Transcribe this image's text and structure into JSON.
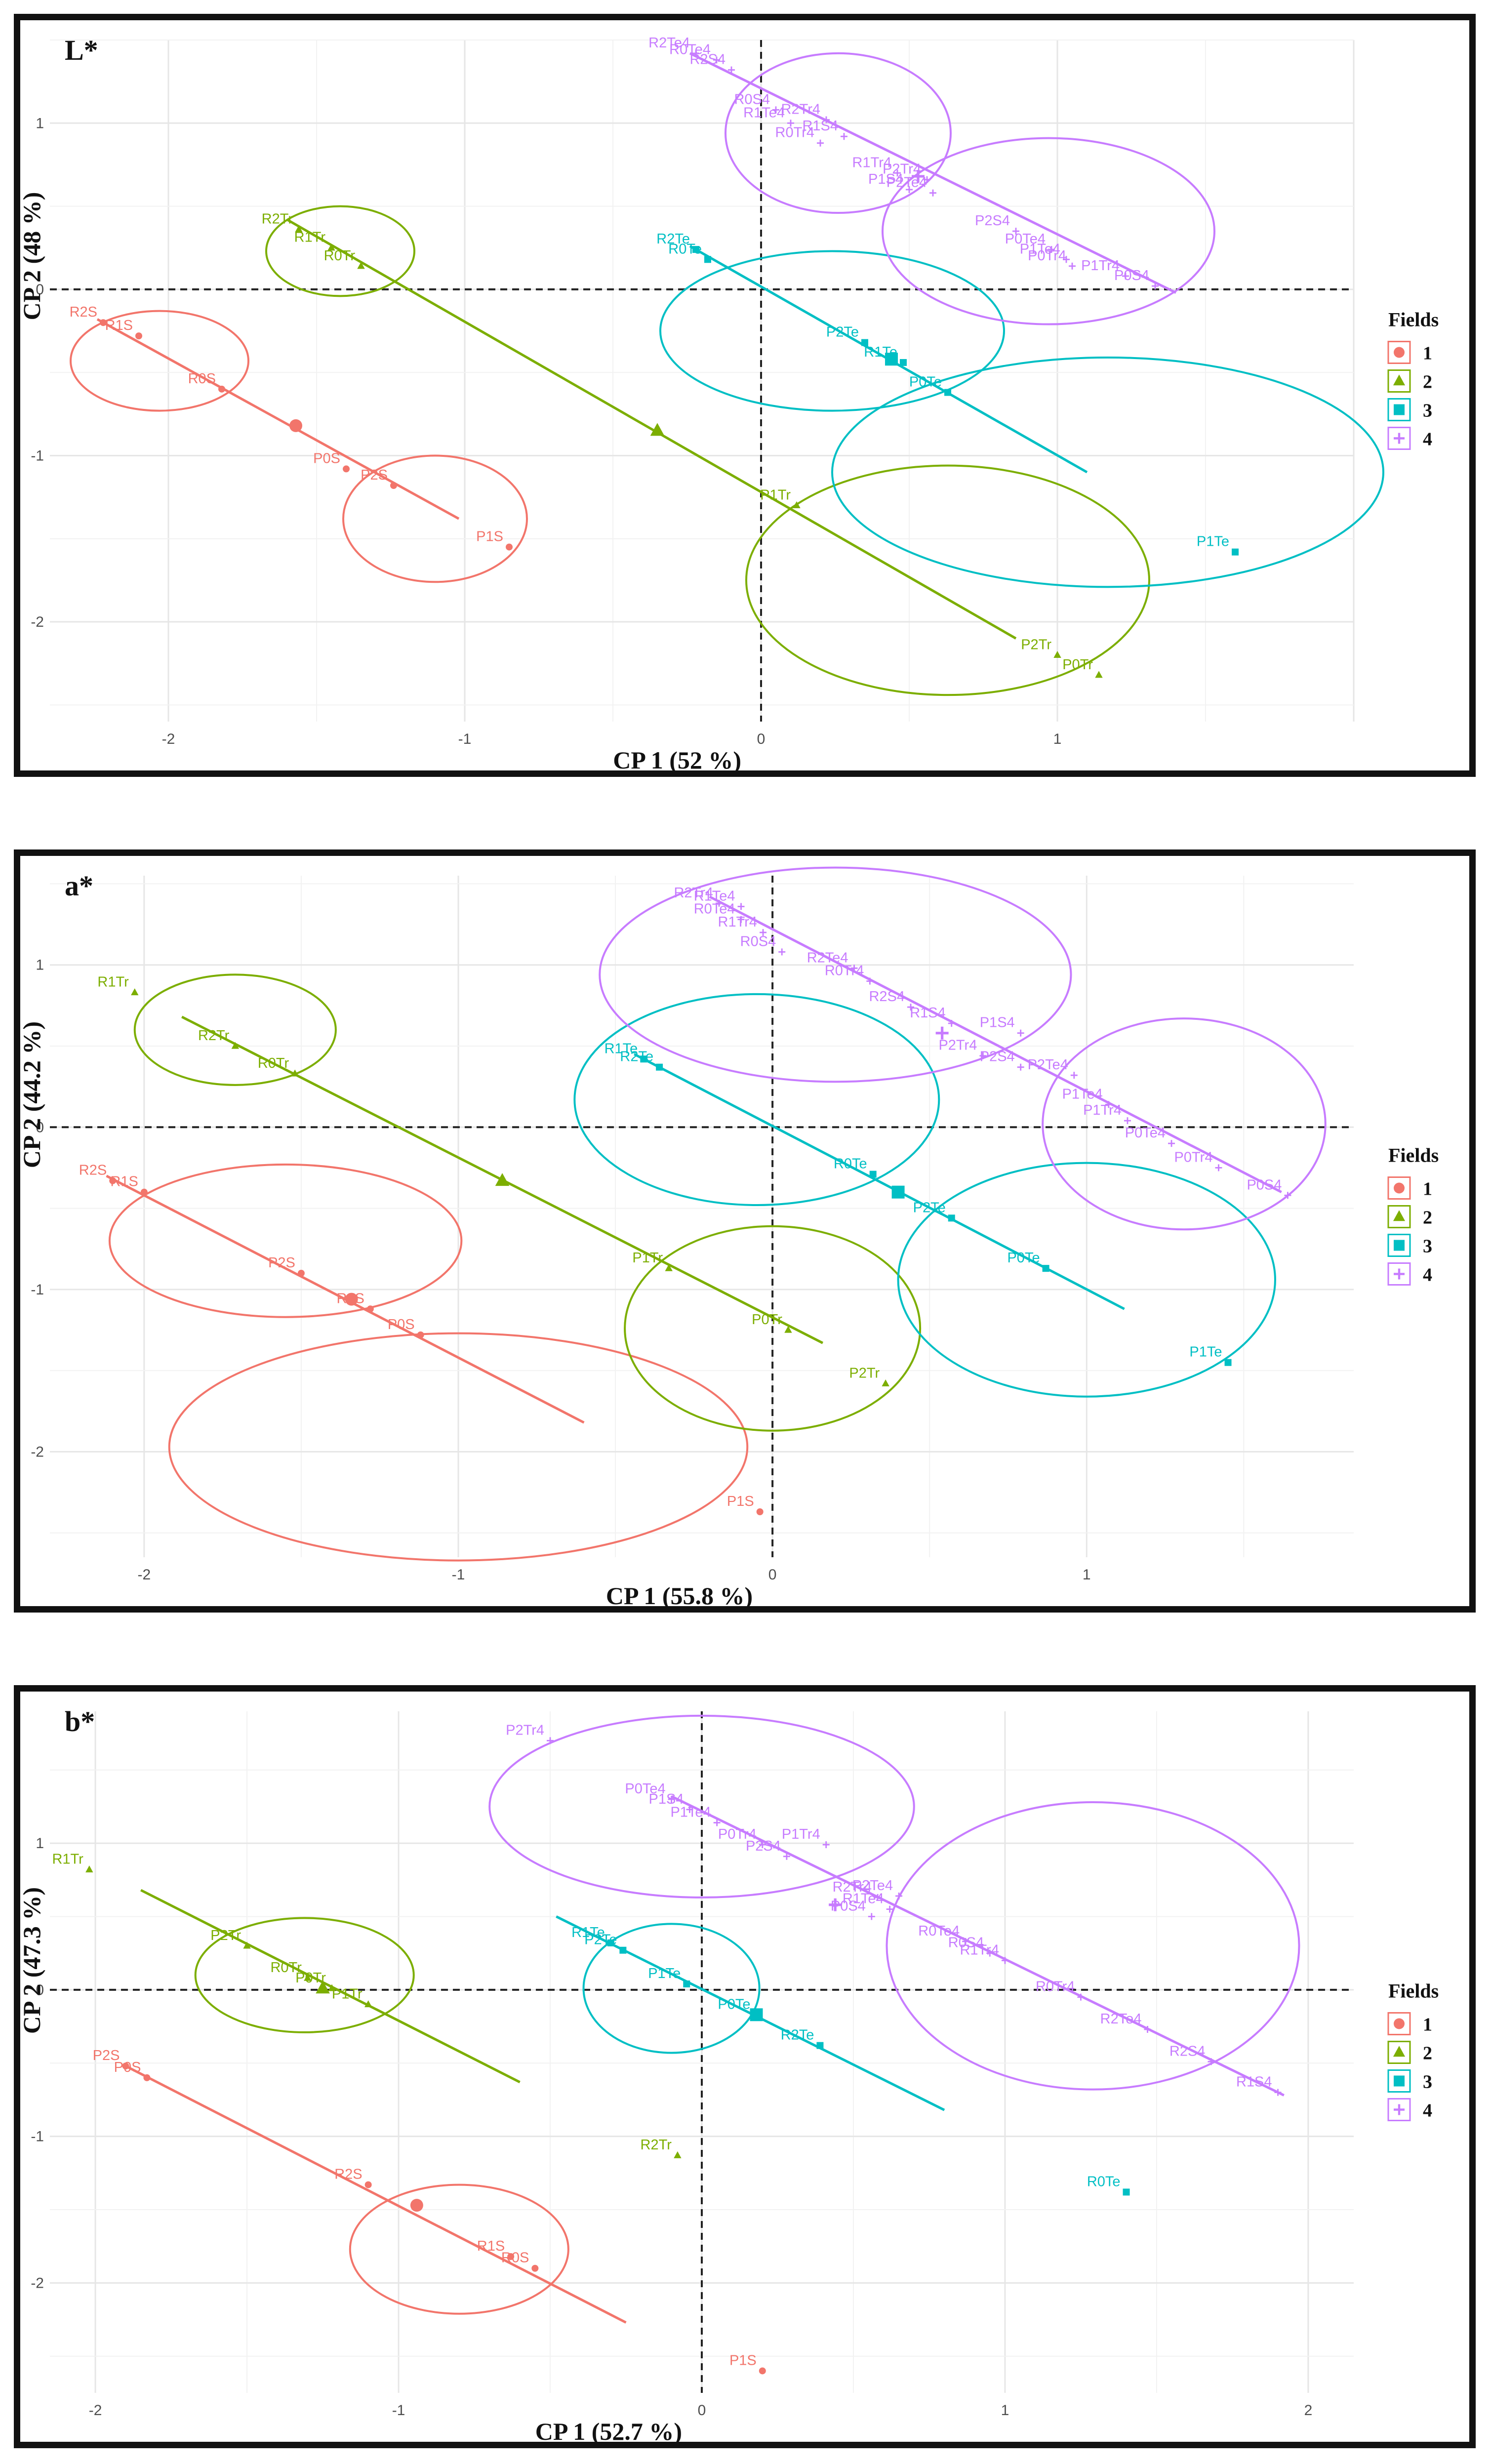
{
  "legend_title": "Fields",
  "groups": [
    {
      "id": "1",
      "color": "#F2756B"
    },
    {
      "id": "2",
      "color": "#7CAE00"
    },
    {
      "id": "3",
      "color": "#00BFC4"
    },
    {
      "id": "4",
      "color": "#C77CFF"
    }
  ],
  "chart_data": [
    {
      "type": "scatter",
      "title": "L*",
      "xlabel": "CP 1 (52 %)",
      "ylabel": "CP 2 (48 %)",
      "xlim": [
        -2.4,
        2.0
      ],
      "ylim": [
        -2.6,
        1.5
      ],
      "xticks": [
        -2,
        -1,
        0,
        1
      ],
      "yticks": [
        -2,
        -1,
        0,
        1
      ],
      "points": [
        {
          "label": "R2S",
          "g": "1",
          "x": -2.22,
          "y": -0.2
        },
        {
          "label": "R1S",
          "g": "1",
          "x": -2.1,
          "y": -0.28
        },
        {
          "label": "R0S",
          "g": "1",
          "x": -1.82,
          "y": -0.6
        },
        {
          "label": "P0S",
          "g": "1",
          "x": -1.4,
          "y": -1.08
        },
        {
          "label": "P2S",
          "g": "1",
          "x": -1.24,
          "y": -1.18
        },
        {
          "label": "P1S",
          "g": "1",
          "x": -0.85,
          "y": -1.55
        },
        {
          "label": "R2Tr",
          "g": "2",
          "x": -1.56,
          "y": 0.36
        },
        {
          "label": "R1Tr",
          "g": "2",
          "x": -1.45,
          "y": 0.25
        },
        {
          "label": "R0Tr",
          "g": "2",
          "x": -1.35,
          "y": 0.14
        },
        {
          "label": "P1Tr",
          "g": "2",
          "x": 0.12,
          "y": -1.3
        },
        {
          "label": "P2Tr",
          "g": "2",
          "x": 1.0,
          "y": -2.2
        },
        {
          "label": "P0Tr",
          "g": "2",
          "x": 1.14,
          "y": -2.32
        },
        {
          "label": "R2Te",
          "g": "3",
          "x": -0.22,
          "y": 0.24
        },
        {
          "label": "R0Te",
          "g": "3",
          "x": -0.18,
          "y": 0.18
        },
        {
          "label": "P2Te",
          "g": "3",
          "x": 0.35,
          "y": -0.32
        },
        {
          "label": "R1Te",
          "g": "3",
          "x": 0.48,
          "y": -0.44
        },
        {
          "label": "P0Te",
          "g": "3",
          "x": 0.63,
          "y": -0.62
        },
        {
          "label": "P1Te",
          "g": "3",
          "x": 1.6,
          "y": -1.58
        },
        {
          "label": "R2Te4",
          "g": "4",
          "x": -0.22,
          "y": 1.42
        },
        {
          "label": "R0Te4",
          "g": "4",
          "x": -0.15,
          "y": 1.38
        },
        {
          "label": "R2S4",
          "g": "4",
          "x": -0.1,
          "y": 1.32
        },
        {
          "label": "R0S4",
          "g": "4",
          "x": 0.05,
          "y": 1.08
        },
        {
          "label": "R2Tr4",
          "g": "4",
          "x": 0.22,
          "y": 1.02
        },
        {
          "label": "R1Te4",
          "g": "4",
          "x": 0.1,
          "y": 1.0
        },
        {
          "label": "R0Tr4",
          "g": "4",
          "x": 0.2,
          "y": 0.88
        },
        {
          "label": "R1S4",
          "g": "4",
          "x": 0.28,
          "y": 0.92
        },
        {
          "label": "R1Tr4",
          "g": "4",
          "x": 0.46,
          "y": 0.7
        },
        {
          "label": "P2Tr4",
          "g": "4",
          "x": 0.56,
          "y": 0.66
        },
        {
          "label": "P1S4",
          "g": "4",
          "x": 0.5,
          "y": 0.6
        },
        {
          "label": "P2Te4",
          "g": "4",
          "x": 0.58,
          "y": 0.58
        },
        {
          "label": "P2S4",
          "g": "4",
          "x": 0.86,
          "y": 0.35
        },
        {
          "label": "P0Te4",
          "g": "4",
          "x": 0.98,
          "y": 0.24
        },
        {
          "label": "P1Te4",
          "g": "4",
          "x": 1.03,
          "y": 0.18
        },
        {
          "label": "P0Tr4",
          "g": "4",
          "x": 1.05,
          "y": 0.14
        },
        {
          "label": "P1Tr4",
          "g": "4",
          "x": 1.23,
          "y": 0.08
        },
        {
          "label": "P0S4",
          "g": "4",
          "x": 1.33,
          "y": 0.02
        }
      ],
      "centroids": [
        {
          "g": "1",
          "x": -1.57,
          "y": -0.82
        },
        {
          "g": "2",
          "x": -0.35,
          "y": -0.85
        },
        {
          "g": "3",
          "x": 0.44,
          "y": -0.42
        },
        {
          "g": "4",
          "x": 0.53,
          "y": 0.68
        }
      ],
      "segments": [
        {
          "g": "1",
          "from": [
            -2.24,
            -0.18
          ],
          "to": [
            -1.02,
            -1.38
          ]
        },
        {
          "g": "2",
          "from": [
            -1.6,
            0.42
          ],
          "to": [
            0.86,
            -2.1
          ]
        },
        {
          "g": "3",
          "from": [
            -0.24,
            0.26
          ],
          "to": [
            1.1,
            -1.1
          ]
        },
        {
          "g": "4",
          "from": [
            -0.24,
            1.42
          ],
          "to": [
            1.4,
            -0.02
          ]
        }
      ],
      "ellipses": [
        {
          "g": "1",
          "cx": -2.03,
          "cy": -0.43,
          "rx": 0.3,
          "ry": 0.3
        },
        {
          "g": "1",
          "cx": -1.1,
          "cy": -1.38,
          "rx": 0.31,
          "ry": 0.38
        },
        {
          "g": "2",
          "cx": -1.42,
          "cy": 0.23,
          "rx": 0.25,
          "ry": 0.27
        },
        {
          "g": "2",
          "cx": 0.63,
          "cy": -1.75,
          "rx": 0.68,
          "ry": 0.69
        },
        {
          "g": "3",
          "cx": 0.24,
          "cy": -0.25,
          "rx": 0.58,
          "ry": 0.48
        },
        {
          "g": "3",
          "cx": 1.17,
          "cy": -1.1,
          "rx": 0.93,
          "ry": 0.69
        },
        {
          "g": "4",
          "cx": 0.26,
          "cy": 0.94,
          "rx": 0.38,
          "ry": 0.48
        },
        {
          "g": "4",
          "cx": 0.97,
          "cy": 0.35,
          "rx": 0.56,
          "ry": 0.56
        }
      ]
    },
    {
      "type": "scatter",
      "title": "a*",
      "xlabel": "CP 1 (55.8 %)",
      "ylabel": "CP 2 (44.2 %)",
      "xlim": [
        -2.3,
        1.85
      ],
      "ylim": [
        -2.65,
        1.55
      ],
      "xticks": [
        -2,
        -1,
        0,
        1
      ],
      "yticks": [
        -2,
        -1,
        0,
        1
      ],
      "points": [
        {
          "label": "R1Tr",
          "g": "2",
          "x": -2.03,
          "y": 0.83
        },
        {
          "label": "R2Tr",
          "g": "2",
          "x": -1.71,
          "y": 0.5
        },
        {
          "label": "R0Tr",
          "g": "2",
          "x": -1.52,
          "y": 0.33
        },
        {
          "label": "P1Tr",
          "g": "2",
          "x": -0.33,
          "y": -0.87
        },
        {
          "label": "P0Tr",
          "g": "2",
          "x": 0.05,
          "y": -1.25
        },
        {
          "label": "P2Tr",
          "g": "2",
          "x": 0.36,
          "y": -1.58
        },
        {
          "label": "R2S",
          "g": "1",
          "x": -2.1,
          "y": -0.33
        },
        {
          "label": "R1S",
          "g": "1",
          "x": -2.0,
          "y": -0.4
        },
        {
          "label": "P2S",
          "g": "1",
          "x": -1.5,
          "y": -0.9
        },
        {
          "label": "R0S",
          "g": "1",
          "x": -1.28,
          "y": -1.12
        },
        {
          "label": "P0S",
          "g": "1",
          "x": -1.12,
          "y": -1.28
        },
        {
          "label": "P1S",
          "g": "1",
          "x": -0.04,
          "y": -2.37
        },
        {
          "label": "R1Te",
          "g": "3",
          "x": -0.41,
          "y": 0.42
        },
        {
          "label": "R2Te",
          "g": "3",
          "x": -0.36,
          "y": 0.37
        },
        {
          "label": "R0Te",
          "g": "3",
          "x": 0.32,
          "y": -0.29
        },
        {
          "label": "P2Te",
          "g": "3",
          "x": 0.57,
          "y": -0.56
        },
        {
          "label": "P0Te",
          "g": "3",
          "x": 0.87,
          "y": -0.87
        },
        {
          "label": "P1Te",
          "g": "3",
          "x": 1.45,
          "y": -1.45
        },
        {
          "label": "R2Tr4",
          "g": "4",
          "x": -0.17,
          "y": 1.38
        },
        {
          "label": "R1Te4",
          "g": "4",
          "x": -0.1,
          "y": 1.36
        },
        {
          "label": "R0Te4",
          "g": "4",
          "x": -0.1,
          "y": 1.28
        },
        {
          "label": "R1Tr4",
          "g": "4",
          "x": -0.03,
          "y": 1.2
        },
        {
          "label": "R0S4",
          "g": "4",
          "x": 0.03,
          "y": 1.08
        },
        {
          "label": "R2Te4",
          "g": "4",
          "x": 0.26,
          "y": 0.98
        },
        {
          "label": "R0Tr4",
          "g": "4",
          "x": 0.31,
          "y": 0.9
        },
        {
          "label": "R2S4",
          "g": "4",
          "x": 0.44,
          "y": 0.74
        },
        {
          "label": "R1S4",
          "g": "4",
          "x": 0.57,
          "y": 0.64
        },
        {
          "label": "P1S4",
          "g": "4",
          "x": 0.79,
          "y": 0.58
        },
        {
          "label": "P2Tr4",
          "g": "4",
          "x": 0.67,
          "y": 0.44
        },
        {
          "label": "P2S4",
          "g": "4",
          "x": 0.79,
          "y": 0.37
        },
        {
          "label": "P2Te4",
          "g": "4",
          "x": 0.96,
          "y": 0.32
        },
        {
          "label": "P1Te4",
          "g": "4",
          "x": 1.07,
          "y": 0.14
        },
        {
          "label": "P1Tr4",
          "g": "4",
          "x": 1.13,
          "y": 0.04
        },
        {
          "label": "P0Te4",
          "g": "4",
          "x": 1.27,
          "y": -0.1
        },
        {
          "label": "P0Tr4",
          "g": "4",
          "x": 1.42,
          "y": -0.25
        },
        {
          "label": "P0S4",
          "g": "4",
          "x": 1.64,
          "y": -0.42
        }
      ],
      "centroids": [
        {
          "g": "1",
          "x": -1.34,
          "y": -1.06
        },
        {
          "g": "2",
          "x": -0.86,
          "y": -0.33
        },
        {
          "g": "3",
          "x": 0.4,
          "y": -0.4
        },
        {
          "g": "4",
          "x": 0.54,
          "y": 0.58
        }
      ],
      "segments": [
        {
          "g": "1",
          "from": [
            -2.12,
            -0.3
          ],
          "to": [
            -0.6,
            -1.82
          ]
        },
        {
          "g": "2",
          "from": [
            -1.88,
            0.68
          ],
          "to": [
            0.16,
            -1.33
          ]
        },
        {
          "g": "3",
          "from": [
            -0.44,
            0.45
          ],
          "to": [
            1.12,
            -1.12
          ]
        },
        {
          "g": "4",
          "from": [
            -0.2,
            1.42
          ],
          "to": [
            1.62,
            -0.4
          ]
        }
      ],
      "ellipses": [
        {
          "g": "1",
          "cx": -1.55,
          "cy": -0.7,
          "rx": 0.56,
          "ry": 0.47
        },
        {
          "g": "1",
          "cx": -1.0,
          "cy": -1.97,
          "rx": 0.92,
          "ry": 0.7
        },
        {
          "g": "2",
          "cx": -1.71,
          "cy": 0.6,
          "rx": 0.32,
          "ry": 0.34
        },
        {
          "g": "2",
          "cx": 0.0,
          "cy": -1.24,
          "rx": 0.47,
          "ry": 0.63
        },
        {
          "g": "3",
          "cx": -0.05,
          "cy": 0.17,
          "rx": 0.58,
          "ry": 0.65
        },
        {
          "g": "3",
          "cx": 1.0,
          "cy": -0.94,
          "rx": 0.6,
          "ry": 0.72
        },
        {
          "g": "4",
          "cx": 0.2,
          "cy": 0.94,
          "rx": 0.75,
          "ry": 0.66
        },
        {
          "g": "4",
          "cx": 1.31,
          "cy": 0.02,
          "rx": 0.45,
          "ry": 0.65
        }
      ]
    },
    {
      "type": "scatter",
      "title": "b*",
      "xlabel": "CP 1 (52.7 %)",
      "ylabel": "CP 2 (47.3 %)",
      "xlim": [
        -2.15,
        2.15
      ],
      "ylim": [
        -2.75,
        1.9
      ],
      "xticks": [
        -2,
        -1,
        0,
        1,
        2
      ],
      "yticks": [
        -2,
        -1,
        0,
        1
      ],
      "points": [
        {
          "label": "R1Tr",
          "g": "2",
          "x": -2.02,
          "y": 0.82
        },
        {
          "label": "P2Tr",
          "g": "2",
          "x": -1.5,
          "y": 0.3
        },
        {
          "label": "R0Tr",
          "g": "2",
          "x": -1.3,
          "y": 0.08
        },
        {
          "label": "P0Tr",
          "g": "2",
          "x": -1.22,
          "y": 0.01
        },
        {
          "label": "P1Tr",
          "g": "2",
          "x": -1.1,
          "y": -0.1
        },
        {
          "label": "R2Tr",
          "g": "2",
          "x": -0.08,
          "y": -1.13
        },
        {
          "label": "P2S",
          "g": "1",
          "x": -1.9,
          "y": -0.52
        },
        {
          "label": "P0S",
          "g": "1",
          "x": -1.83,
          "y": -0.6
        },
        {
          "label": "R2S",
          "g": "1",
          "x": -1.1,
          "y": -1.33
        },
        {
          "label": "R1S",
          "g": "1",
          "x": -0.63,
          "y": -1.82
        },
        {
          "label": "R0S",
          "g": "1",
          "x": -0.55,
          "y": -1.9
        },
        {
          "label": "P1S",
          "g": "1",
          "x": 0.2,
          "y": -2.6
        },
        {
          "label": "R1Te",
          "g": "3",
          "x": -0.3,
          "y": 0.32
        },
        {
          "label": "P2Te",
          "g": "3",
          "x": -0.26,
          "y": 0.27
        },
        {
          "label": "P1Te",
          "g": "3",
          "x": -0.05,
          "y": 0.04
        },
        {
          "label": "P0Te",
          "g": "3",
          "x": 0.18,
          "y": -0.17
        },
        {
          "label": "R2Te",
          "g": "3",
          "x": 0.39,
          "y": -0.38
        },
        {
          "label": "R0Te",
          "g": "3",
          "x": 1.4,
          "y": -1.38
        },
        {
          "label": "P2Tr4",
          "g": "4",
          "x": -0.5,
          "y": 1.7
        },
        {
          "label": "P0Te4",
          "g": "4",
          "x": -0.1,
          "y": 1.3
        },
        {
          "label": "P1S4",
          "g": "4",
          "x": -0.04,
          "y": 1.23
        },
        {
          "label": "P1Te4",
          "g": "4",
          "x": 0.05,
          "y": 1.14
        },
        {
          "label": "P0Tr4",
          "g": "4",
          "x": 0.2,
          "y": 0.99
        },
        {
          "label": "P1Tr4",
          "g": "4",
          "x": 0.41,
          "y": 0.99
        },
        {
          "label": "P2S4",
          "g": "4",
          "x": 0.28,
          "y": 0.91
        },
        {
          "label": "R2Tr4",
          "g": "4",
          "x": 0.58,
          "y": 0.63
        },
        {
          "label": "P2Te4",
          "g": "4",
          "x": 0.65,
          "y": 0.64
        },
        {
          "label": "R1Te4",
          "g": "4",
          "x": 0.62,
          "y": 0.55
        },
        {
          "label": "P0S4",
          "g": "4",
          "x": 0.56,
          "y": 0.5
        },
        {
          "label": "R1Tr4",
          "g": "4",
          "x": 1.0,
          "y": 0.2
        },
        {
          "label": "R0Te4",
          "g": "4",
          "x": 0.87,
          "y": 0.33
        },
        {
          "label": "R0S4",
          "g": "4",
          "x": 0.95,
          "y": 0.25
        },
        {
          "label": "R0Tr4",
          "g": "4",
          "x": 1.25,
          "y": -0.05
        },
        {
          "label": "R2Te4",
          "g": "4",
          "x": 1.47,
          "y": -0.27
        },
        {
          "label": "R2S4",
          "g": "4",
          "x": 1.68,
          "y": -0.49
        },
        {
          "label": "R1S4",
          "g": "4",
          "x": 1.9,
          "y": -0.7
        }
      ],
      "centroids": [
        {
          "g": "1",
          "x": -0.94,
          "y": -1.47
        },
        {
          "g": "2",
          "x": -1.25,
          "y": 0.01
        },
        {
          "g": "3",
          "x": 0.18,
          "y": -0.17
        },
        {
          "g": "4",
          "x": 0.44,
          "y": 0.58
        }
      ],
      "segments": [
        {
          "g": "1",
          "from": [
            -1.9,
            -0.52
          ],
          "to": [
            -0.25,
            -2.27
          ]
        },
        {
          "g": "2",
          "from": [
            -1.85,
            0.68
          ],
          "to": [
            -0.6,
            -0.63
          ]
        },
        {
          "g": "3",
          "from": [
            -0.48,
            0.5
          ],
          "to": [
            0.8,
            -0.82
          ]
        },
        {
          "g": "4",
          "from": [
            -0.1,
            1.32
          ],
          "to": [
            1.92,
            -0.72
          ]
        }
      ],
      "ellipses": [
        {
          "g": "1",
          "cx": -0.8,
          "cy": -1.77,
          "rx": 0.36,
          "ry": 0.44
        },
        {
          "g": "2",
          "cx": -1.31,
          "cy": 0.1,
          "rx": 0.36,
          "ry": 0.39
        },
        {
          "g": "3",
          "cx": -0.1,
          "cy": 0.01,
          "rx": 0.29,
          "ry": 0.44
        },
        {
          "g": "4",
          "cx": 0.0,
          "cy": 1.25,
          "rx": 0.7,
          "ry": 0.62
        },
        {
          "g": "4",
          "cx": 1.29,
          "cy": 0.3,
          "rx": 0.68,
          "ry": 0.98
        }
      ]
    }
  ]
}
